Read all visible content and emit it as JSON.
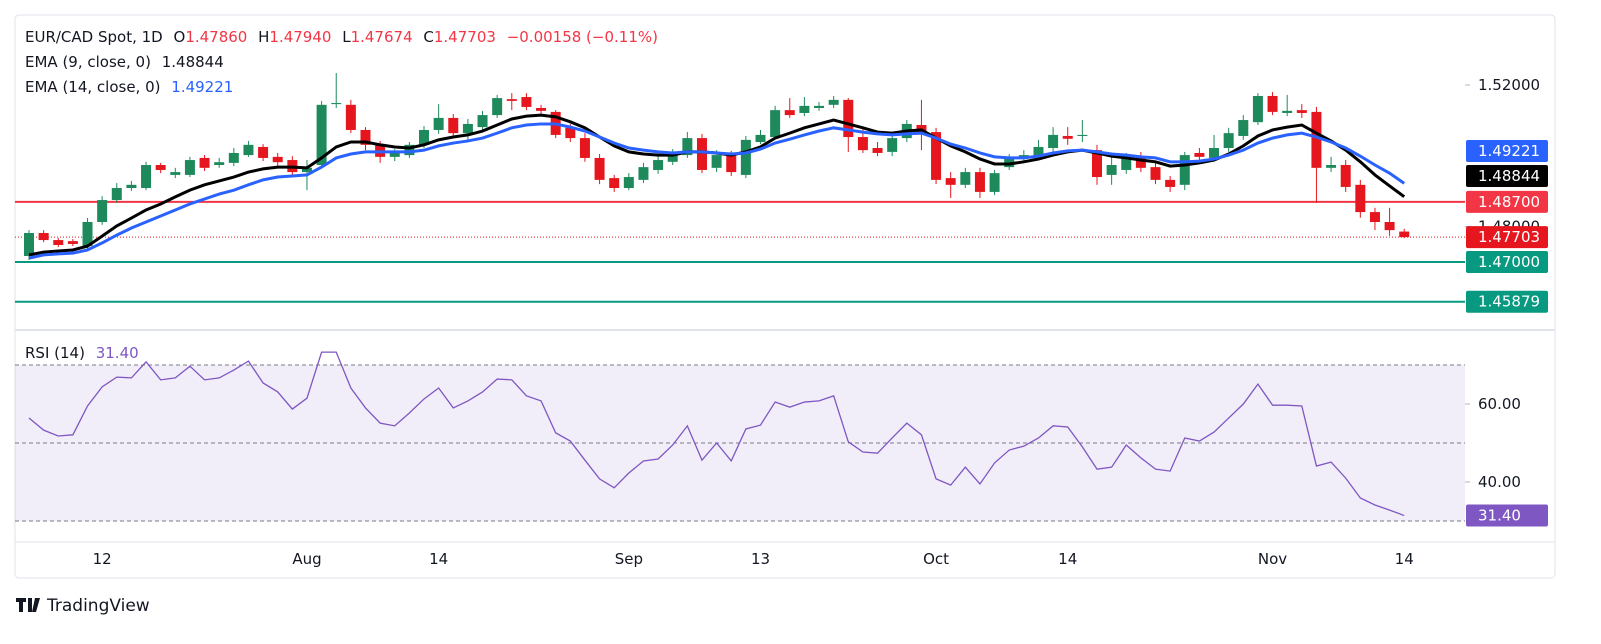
{
  "header": {
    "symbol": "EUR/CAD Spot, 1D",
    "ohlc": [
      {
        "label": "O",
        "value": "1.47860"
      },
      {
        "label": "H",
        "value": "1.47940"
      },
      {
        "label": "L",
        "value": "1.47674"
      },
      {
        "label": "C",
        "value": "1.47703"
      }
    ],
    "change": "−0.00158 (−0.11%)"
  },
  "chart_data": [
    {
      "type": "candlestick",
      "categories": [
        null,
        null,
        null,
        null,
        null,
        "12",
        null,
        null,
        null,
        null,
        null,
        null,
        null,
        null,
        null,
        null,
        null,
        null,
        null,
        "Aug",
        null,
        null,
        null,
        null,
        null,
        null,
        null,
        null,
        "14",
        null,
        null,
        null,
        null,
        null,
        null,
        null,
        null,
        null,
        null,
        null,
        null,
        "Sep",
        null,
        null,
        null,
        null,
        null,
        null,
        null,
        null,
        "13",
        null,
        null,
        null,
        null,
        null,
        null,
        null,
        null,
        null,
        null,
        null,
        "Oct",
        null,
        null,
        null,
        null,
        null,
        null,
        null,
        null,
        "14",
        null,
        null,
        null,
        null,
        null,
        null,
        null,
        null,
        null,
        null,
        null,
        null,
        null,
        "Nov",
        null,
        null,
        null,
        null,
        null,
        null,
        null,
        null,
        "14"
      ],
      "open": [
        1.4717,
        1.4782,
        1.4762,
        1.4759,
        1.4745,
        1.4813,
        1.4875,
        1.4909,
        1.4909,
        1.4974,
        1.4946,
        1.4946,
        1.4994,
        1.4974,
        1.498,
        1.5002,
        1.5025,
        1.4997,
        1.4988,
        1.4954,
        1.4974,
        1.5146,
        1.5144,
        1.5073,
        1.5031,
        1.4997,
        1.5002,
        1.5031,
        1.5073,
        1.5107,
        1.5064,
        1.5081,
        1.5115,
        1.516,
        1.5166,
        1.5135,
        1.5124,
        1.5079,
        1.505,
        1.4994,
        1.4937,
        1.4909,
        1.4932,
        1.496,
        1.4983,
        1.5002,
        1.505,
        1.4966,
        1.5002,
        1.4946,
        1.5039,
        1.5053,
        1.5129,
        1.5121,
        1.5135,
        1.5144,
        1.5158,
        1.5053,
        1.5022,
        1.5011,
        1.505,
        1.5087,
        1.5067,
        1.4937,
        1.4918,
        1.4954,
        1.4898,
        1.4968,
        1.4994,
        1.4997,
        1.5022,
        1.5056,
        1.5056,
        1.5016,
        1.4946,
        1.496,
        1.4999,
        1.4968,
        1.4932,
        1.4918,
        1.5008,
        1.4994,
        1.5022,
        1.5056,
        1.5095,
        1.5169,
        1.5121,
        1.5129,
        1.5124,
        1.4966,
        1.4974,
        1.4918,
        1.4841,
        1.4813,
        1.4786
      ],
      "high": [
        1.479,
        1.479,
        1.4768,
        1.4765,
        1.4824,
        1.4886,
        1.4923,
        1.4929,
        1.4983,
        1.498,
        1.4966,
        1.4997,
        1.5002,
        1.4994,
        1.5022,
        1.5042,
        1.5033,
        1.5008,
        1.4999,
        1.4988,
        1.5155,
        1.5234,
        1.5158,
        1.5081,
        1.5042,
        1.5019,
        1.5039,
        1.5084,
        1.5146,
        1.5118,
        1.5104,
        1.5127,
        1.5172,
        1.5177,
        1.5177,
        1.5144,
        1.5129,
        1.509,
        1.5064,
        1.5005,
        1.4946,
        1.4951,
        1.498,
        1.4999,
        1.5019,
        1.5067,
        1.5062,
        1.5016,
        1.5014,
        1.5056,
        1.5073,
        1.5141,
        1.5163,
        1.5166,
        1.5152,
        1.5169,
        1.5163,
        1.5081,
        1.5039,
        1.5067,
        1.5101,
        1.5158,
        1.5079,
        1.4954,
        1.4966,
        1.4966,
        1.496,
        1.5005,
        1.5016,
        1.5045,
        1.5081,
        1.5081,
        1.5101,
        1.5031,
        1.4997,
        1.5008,
        1.5011,
        1.498,
        1.4943,
        1.5011,
        1.5022,
        1.5059,
        1.5079,
        1.5115,
        1.5177,
        1.518,
        1.5172,
        1.5146,
        1.5138,
        1.4997,
        1.4988,
        1.4932,
        1.4853,
        1.4853,
        1.4794
      ],
      "low": [
        1.4706,
        1.4756,
        1.4742,
        1.4745,
        1.4737,
        1.4805,
        1.4867,
        1.4901,
        1.4903,
        1.4951,
        1.4937,
        1.494,
        1.4957,
        1.4966,
        1.4971,
        1.4997,
        1.4985,
        1.4971,
        1.4943,
        1.4903,
        1.4966,
        1.5135,
        1.5064,
        1.5016,
        1.498,
        1.4985,
        1.4994,
        1.5022,
        1.5062,
        1.5053,
        1.5045,
        1.5073,
        1.5107,
        1.5129,
        1.5129,
        1.5115,
        1.505,
        1.5039,
        1.4983,
        1.492,
        1.4898,
        1.4903,
        1.4923,
        1.4949,
        1.4974,
        1.4994,
        1.4951,
        1.4954,
        1.4943,
        1.4937,
        1.5033,
        1.5047,
        1.5107,
        1.5112,
        1.5127,
        1.5135,
        1.5011,
        1.5008,
        1.4999,
        1.4999,
        1.5039,
        1.5016,
        1.492,
        1.4881,
        1.4909,
        1.4881,
        1.4889,
        1.496,
        1.4983,
        1.4988,
        1.5011,
        1.5031,
        1.5039,
        1.4918,
        1.4918,
        1.4949,
        1.4954,
        1.492,
        1.4898,
        1.4903,
        1.4988,
        1.4983,
        1.5011,
        1.5045,
        1.5087,
        1.5115,
        1.5112,
        1.5107,
        1.4867,
        1.4954,
        1.4898,
        1.4825,
        1.479,
        1.4774,
        1.47674
      ],
      "close": [
        1.4782,
        1.4762,
        1.4748,
        1.4751,
        1.4813,
        1.4875,
        1.4909,
        1.4918,
        1.4974,
        1.496,
        1.4954,
        1.4988,
        1.4966,
        1.4982,
        1.5008,
        1.5031,
        1.4994,
        1.4982,
        1.4954,
        1.4966,
        1.5144,
        1.5149,
        1.5073,
        1.5031,
        1.4997,
        1.5008,
        1.5031,
        1.5073,
        1.5107,
        1.5064,
        1.509,
        1.5115,
        1.5163,
        1.5155,
        1.5138,
        1.5127,
        1.5059,
        1.505,
        1.4994,
        1.4932,
        1.4909,
        1.494,
        1.4968,
        1.4988,
        1.5011,
        1.505,
        1.496,
        1.5002,
        1.4954,
        1.5045,
        1.5059,
        1.5129,
        1.5115,
        1.5141,
        1.5141,
        1.5158,
        1.5053,
        1.5016,
        1.5008,
        1.505,
        1.509,
        1.5067,
        1.4932,
        1.4918,
        1.4954,
        1.4898,
        1.4951,
        1.4997,
        1.5002,
        1.5025,
        1.5059,
        1.5048,
        1.5059,
        1.494,
        1.4974,
        1.4999,
        1.4966,
        1.4932,
        1.4912,
        1.5002,
        1.4997,
        1.5022,
        1.5064,
        1.5101,
        1.5169,
        1.5124,
        1.5127,
        1.5121,
        1.4966,
        1.4974,
        1.4912,
        1.4841,
        1.4813,
        1.479,
        1.47703
      ],
      "up_color": "#1e8a5c",
      "down_color": "#e5161d",
      "ylim": [
        1.45136,
        1.53977
      ],
      "yticks": [
        {
          "value": 1.48,
          "label": "1.48000"
        },
        {
          "value": 1.52,
          "label": "1.52000"
        }
      ],
      "series": [
        {
          "name": "EMA (9, close, 0)",
          "color": "#000000",
          "last_label": "1.48844",
          "values": [
            1.472,
            1.4728,
            1.4731,
            1.4734,
            1.4745,
            1.4773,
            1.4802,
            1.4824,
            1.4847,
            1.4864,
            1.4884,
            1.4903,
            1.4918,
            1.4929,
            1.494,
            1.4954,
            1.4963,
            1.4968,
            1.4968,
            1.4966,
            1.4994,
            1.5025,
            1.5039,
            1.5039,
            1.5031,
            1.5025,
            1.5022,
            1.5031,
            1.5045,
            1.5053,
            1.5059,
            1.507,
            1.5087,
            1.5104,
            1.5112,
            1.5115,
            1.511,
            1.5096,
            1.5079,
            1.5053,
            1.5028,
            1.5011,
            1.5005,
            1.5002,
            1.5002,
            1.5011,
            1.5011,
            1.5008,
            1.5002,
            1.5011,
            1.5025,
            1.505,
            1.5064,
            1.5079,
            1.509,
            1.5101,
            1.509,
            1.5079,
            1.5067,
            1.5064,
            1.507,
            1.5073,
            1.505,
            1.5028,
            1.5011,
            1.4991,
            1.4977,
            1.4977,
            1.4983,
            1.4991,
            1.5002,
            1.5011,
            1.5016,
            1.5008,
            1.4999,
            1.4994,
            1.4988,
            1.4983,
            1.4971,
            1.4974,
            1.498,
            1.4988,
            1.5005,
            1.5028,
            1.5056,
            1.5073,
            1.5081,
            1.5087,
            1.5064,
            1.5042,
            1.5016,
            1.4983,
            1.4946,
            1.4915,
            1.48844
          ]
        },
        {
          "name": "EMA (14, close, 0)",
          "color": "#2962ff",
          "last_label": "1.49221",
          "values": [
            1.4711,
            1.472,
            1.4723,
            1.4725,
            1.4734,
            1.4754,
            1.4776,
            1.4796,
            1.4813,
            1.483,
            1.4847,
            1.4864,
            1.4878,
            1.4892,
            1.4903,
            1.4918,
            1.4932,
            1.494,
            1.4943,
            1.4946,
            1.4968,
            1.4994,
            1.5005,
            1.5011,
            1.5011,
            1.5011,
            1.5011,
            1.5016,
            1.5028,
            1.5036,
            1.5042,
            1.505,
            1.5064,
            1.5079,
            1.5087,
            1.509,
            1.509,
            1.5081,
            1.507,
            1.5053,
            1.5036,
            1.5022,
            1.5016,
            1.5011,
            1.5008,
            1.5011,
            1.5011,
            1.5008,
            1.5005,
            1.5008,
            1.5019,
            1.5036,
            1.5047,
            1.5059,
            1.507,
            1.5079,
            1.5073,
            1.5067,
            1.5062,
            1.5059,
            1.5062,
            1.5064,
            1.505,
            1.5033,
            1.5022,
            1.5008,
            1.4997,
            1.4994,
            1.4994,
            1.4999,
            1.5008,
            1.5014,
            1.5016,
            1.5011,
            1.5005,
            1.5002,
            1.4997,
            1.4994,
            1.4983,
            1.4983,
            1.4985,
            1.4991,
            1.5002,
            1.5016,
            1.5036,
            1.505,
            1.5059,
            1.5064,
            1.5053,
            1.5039,
            1.5022,
            1.4999,
            1.4974,
            1.4951,
            1.49221
          ]
        }
      ],
      "levels": [
        {
          "value": 1.487,
          "label": "1.48700",
          "color": "#f23645"
        },
        {
          "value": 1.47,
          "label": "1.47000",
          "color": "#089981"
        },
        {
          "value": 1.45879,
          "label": "1.45879",
          "color": "#089981"
        }
      ],
      "last_price": {
        "value": 1.47703,
        "label": "1.47703",
        "color": "#e5161d"
      }
    },
    {
      "type": "line",
      "title": "RSI (14)",
      "series": [
        {
          "name": "RSI",
          "color": "#7e57c2",
          "last_label": "31.40",
          "values": [
            56.4,
            53.3,
            51.8,
            52.1,
            59.5,
            64.4,
            66.9,
            66.7,
            70.8,
            66.2,
            66.7,
            69.7,
            66.2,
            66.7,
            68.7,
            71.0,
            65.4,
            63.1,
            58.7,
            61.5,
            73.3,
            73.3,
            64.1,
            59.0,
            55.1,
            54.4,
            57.7,
            61.3,
            64.1,
            59.0,
            60.8,
            63.1,
            66.4,
            66.2,
            62.1,
            60.8,
            52.6,
            50.5,
            45.6,
            40.8,
            38.5,
            42.3,
            45.4,
            45.9,
            49.5,
            54.4,
            45.6,
            50.0,
            45.4,
            53.6,
            54.6,
            60.5,
            59.2,
            60.5,
            60.8,
            62.1,
            50.3,
            47.7,
            47.4,
            51.3,
            55.1,
            52.1,
            40.8,
            39.2,
            43.8,
            39.5,
            44.9,
            48.2,
            49.2,
            51.3,
            54.4,
            54.1,
            49.0,
            43.3,
            43.8,
            49.5,
            46.2,
            43.3,
            42.8,
            51.3,
            50.5,
            52.8,
            56.4,
            60.0,
            65.1,
            59.7,
            59.7,
            59.5,
            44.1,
            45.1,
            41.0,
            35.9,
            34.1,
            32.8,
            31.4
          ]
        }
      ],
      "ylim": [
        25.13,
        78.21
      ],
      "yticks": [
        {
          "value": 60,
          "label": "60.00"
        },
        {
          "value": 40,
          "label": "40.00"
        }
      ],
      "bands": {
        "upper": 70,
        "middle": 50,
        "lower": 30
      }
    }
  ],
  "branding": "TradingView"
}
